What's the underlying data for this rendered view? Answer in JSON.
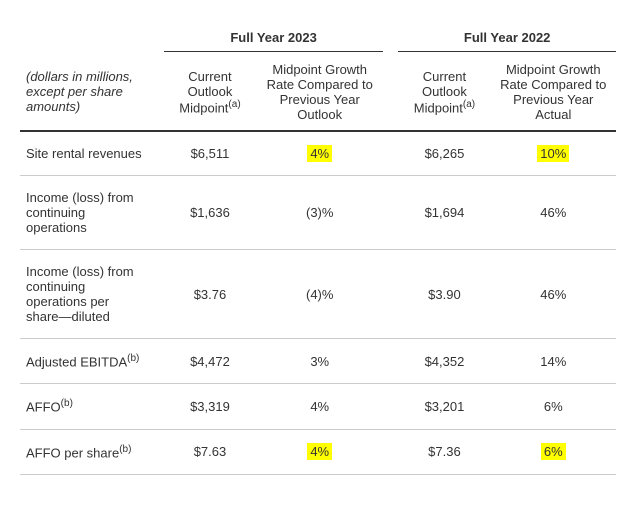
{
  "headers": {
    "year2023": "Full Year 2023",
    "year2022": "Full Year 2022",
    "rowlabel": "(dollars in millions, except per share amounts)",
    "outlook2023": "Current Outlook Midpoint",
    "growth2023": "Midpoint Growth Rate Compared to Previous Year Outlook",
    "outlook2022": "Current Outlook Midpoint",
    "growth2022": "Midpoint Growth Rate Compared to Previous Year Actual",
    "sup_a": "(a)",
    "sup_b": "(b)"
  },
  "rows": [
    {
      "label": "Site rental revenues",
      "v2023": "$6,511",
      "g2023": "4%",
      "v2022": "$6,265",
      "g2022": "10%",
      "highlight": true,
      "sup": null
    },
    {
      "label": "Income (loss) from continuing operations",
      "v2023": "$1,636",
      "g2023": "(3)%",
      "v2022": "$1,694",
      "g2022": "46%",
      "highlight": false,
      "sup": null
    },
    {
      "label": "Income (loss) from continuing operations per share—diluted",
      "v2023": "$3.76",
      "g2023": "(4)%",
      "v2022": "$3.90",
      "g2022": "46%",
      "highlight": false,
      "sup": null
    },
    {
      "label": "Adjusted EBITDA",
      "v2023": "$4,472",
      "g2023": "3%",
      "v2022": "$4,352",
      "g2022": "14%",
      "highlight": false,
      "sup": "(b)"
    },
    {
      "label": "AFFO",
      "v2023": "$3,319",
      "g2023": "4%",
      "v2022": "$3,201",
      "g2022": "6%",
      "highlight": false,
      "sup": "(b)"
    },
    {
      "label": "AFFO per share",
      "v2023": "$7.63",
      "g2023": "4%",
      "v2022": "$7.36",
      "g2022": "6%",
      "highlight": true,
      "sup": "(b)"
    }
  ]
}
